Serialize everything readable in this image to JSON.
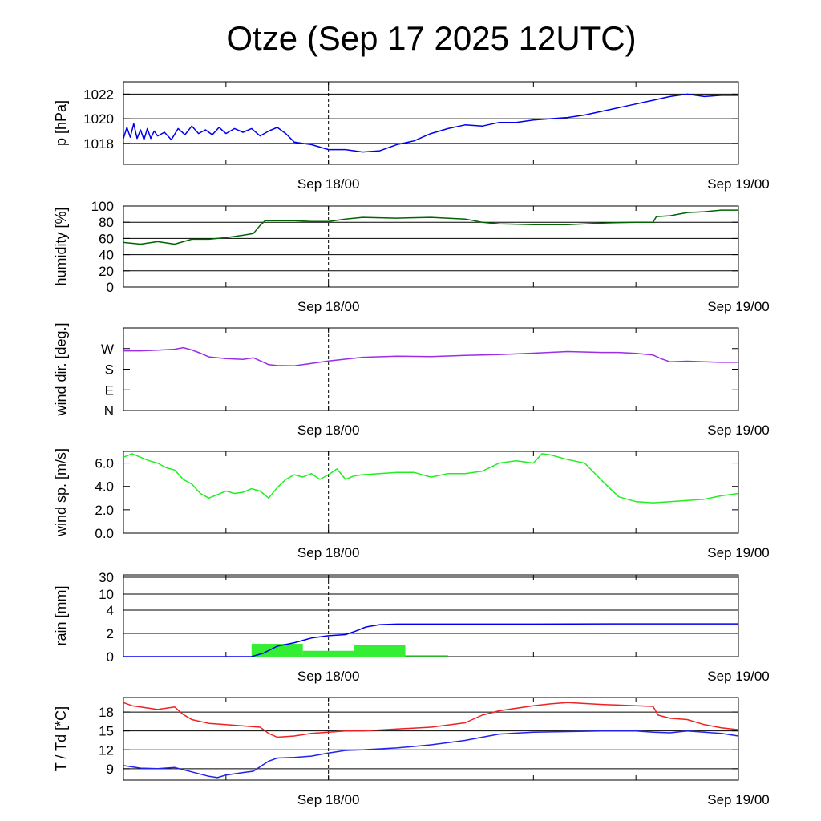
{
  "title": "Otze (Sep 17 2025 12UTC)",
  "chart_data": [
    {
      "id": "pressure",
      "type": "line",
      "ylabel": "p [hPa]",
      "ylim": [
        1016.3,
        1023
      ],
      "yticks": [
        1018,
        1020,
        1022
      ],
      "ytick_labels": [
        "1018",
        "1020",
        "1022"
      ],
      "grid": true,
      "color": "#0000ee",
      "x_range_hours": [
        0,
        36
      ],
      "xtick_hours": [
        12,
        36
      ],
      "xtick_labels": [
        "Sep 18/00",
        "Sep 19/00"
      ],
      "series": [
        {
          "name": "pressure",
          "x": [
            0,
            0.2,
            0.4,
            0.6,
            0.8,
            1.0,
            1.2,
            1.4,
            1.6,
            1.8,
            2.0,
            2.4,
            2.8,
            3.2,
            3.6,
            4.0,
            4.4,
            4.8,
            5.2,
            5.6,
            6,
            6.5,
            7,
            7.5,
            8,
            8.5,
            9,
            9.5,
            10,
            11,
            12,
            13,
            14,
            15,
            16,
            17,
            18,
            19,
            20,
            21,
            22,
            23,
            24,
            25,
            26,
            27,
            28,
            29,
            30,
            31,
            32,
            33,
            34,
            35,
            36
          ],
          "values": [
            1018.4,
            1019.3,
            1018.5,
            1019.6,
            1018.4,
            1019.1,
            1018.3,
            1019.2,
            1018.4,
            1019.0,
            1018.6,
            1018.9,
            1018.3,
            1019.2,
            1018.7,
            1019.4,
            1018.8,
            1019.1,
            1018.7,
            1019.3,
            1018.8,
            1019.2,
            1018.9,
            1019.2,
            1018.6,
            1019.0,
            1019.3,
            1018.8,
            1018.1,
            1017.9,
            1017.5,
            1017.5,
            1017.3,
            1017.4,
            1017.9,
            1018.2,
            1018.8,
            1019.2,
            1019.5,
            1019.4,
            1019.7,
            1019.7,
            1019.9,
            1020.0,
            1020.1,
            1020.3,
            1020.6,
            1020.9,
            1021.2,
            1021.5,
            1021.8,
            1022.0,
            1021.8,
            1021.9,
            1021.9
          ]
        }
      ]
    },
    {
      "id": "humidity",
      "type": "line",
      "ylabel": "humidity [%]",
      "ylim": [
        0,
        100
      ],
      "yticks": [
        0,
        20,
        40,
        60,
        80,
        100
      ],
      "ytick_labels": [
        "0",
        "20",
        "40",
        "60",
        "80",
        "100"
      ],
      "grid": true,
      "color": "#006400",
      "x_range_hours": [
        0,
        36
      ],
      "xtick_hours": [
        12,
        36
      ],
      "xtick_labels": [
        "Sep 18/00",
        "Sep 19/00"
      ],
      "series": [
        {
          "name": "humidity",
          "x": [
            0,
            1,
            2,
            3,
            4,
            5,
            6,
            7,
            7.6,
            8.0,
            8.3,
            9,
            10,
            11,
            12,
            13,
            14,
            16,
            18,
            20,
            21,
            22,
            24,
            26,
            28,
            30,
            31,
            31.2,
            32,
            33,
            34,
            35,
            36
          ],
          "values": [
            55,
            53,
            56,
            53,
            59,
            59,
            61,
            64,
            66,
            76,
            82,
            82,
            82,
            81,
            81,
            84,
            86,
            85,
            86,
            84,
            80,
            78,
            77,
            77,
            79,
            80,
            80,
            87,
            88,
            92,
            93,
            95,
            95
          ]
        }
      ]
    },
    {
      "id": "wind_direction",
      "type": "line",
      "ylabel": "wind dir. [deg.]",
      "ylim": [
        0,
        360
      ],
      "yticks": [
        0,
        90,
        180,
        270
      ],
      "ytick_labels": [
        "N",
        "E",
        "S",
        "W"
      ],
      "grid": false,
      "color": "#9a2ee8",
      "x_range_hours": [
        0,
        36
      ],
      "xtick_hours": [
        12,
        36
      ],
      "xtick_labels": [
        "Sep 18/00",
        "Sep 19/00"
      ],
      "series": [
        {
          "name": "wind direction",
          "x": [
            0,
            1,
            2,
            3,
            3.5,
            4,
            4.5,
            5,
            6,
            7,
            7.6,
            8,
            8.5,
            9,
            10,
            11,
            12,
            14,
            16,
            18,
            20,
            22,
            24,
            26,
            28,
            29,
            30,
            31,
            31.5,
            32,
            33,
            34,
            35,
            36
          ],
          "values": [
            260,
            260,
            263,
            267,
            274,
            264,
            250,
            234,
            226,
            223,
            230,
            217,
            200,
            196,
            195,
            205,
            216,
            232,
            237,
            235,
            240,
            244,
            250,
            257,
            253,
            253,
            249,
            242,
            225,
            212,
            215,
            212,
            210,
            210
          ]
        }
      ]
    },
    {
      "id": "wind_speed",
      "type": "line",
      "ylabel": "wind sp. [m/s]",
      "ylim": [
        0,
        7
      ],
      "yticks": [
        0,
        2,
        4,
        6
      ],
      "ytick_labels": [
        "0.0",
        "2.0",
        "4.0",
        "6.0"
      ],
      "grid": false,
      "color": "#22ee22",
      "x_range_hours": [
        0,
        36
      ],
      "xtick_hours": [
        12,
        36
      ],
      "xtick_labels": [
        "Sep 18/00",
        "Sep 19/00"
      ],
      "series": [
        {
          "name": "wind speed",
          "x": [
            0,
            0.5,
            1,
            1.5,
            2,
            2.5,
            3,
            3.5,
            4,
            4.5,
            5,
            5.5,
            6,
            6.5,
            7,
            7.5,
            8,
            8.5,
            9,
            9.5,
            10,
            10.5,
            11,
            11.5,
            12,
            12.5,
            13,
            13.5,
            14,
            15,
            16,
            17,
            18,
            19,
            20,
            21,
            22,
            23,
            24,
            24.5,
            25,
            26,
            27,
            28,
            29,
            30,
            31,
            32,
            33,
            34,
            35,
            36
          ],
          "values": [
            6.5,
            6.8,
            6.5,
            6.2,
            6.0,
            5.6,
            5.4,
            4.6,
            4.2,
            3.4,
            3.0,
            3.3,
            3.6,
            3.4,
            3.5,
            3.8,
            3.6,
            3.0,
            3.9,
            4.6,
            5.0,
            4.8,
            5.1,
            4.6,
            5.0,
            5.5,
            4.6,
            4.9,
            5.0,
            5.1,
            5.2,
            5.2,
            4.8,
            5.1,
            5.1,
            5.3,
            6.0,
            6.2,
            6.0,
            6.8,
            6.7,
            6.3,
            6.0,
            4.5,
            3.1,
            2.7,
            2.6,
            2.7,
            2.8,
            2.9,
            3.2,
            3.4
          ]
        }
      ]
    },
    {
      "id": "rain",
      "type": "bar+line",
      "ylabel": "rain [mm]",
      "yticks": [
        0,
        2,
        4,
        10,
        30
      ],
      "ytick_labels": [
        "0",
        "2",
        "4",
        "10",
        "30"
      ],
      "grid": true,
      "x_range_hours": [
        0,
        36
      ],
      "xtick_hours": [
        12,
        36
      ],
      "xtick_labels": [
        "Sep 18/00",
        "Sep 19/00"
      ],
      "bars": {
        "name": "hourly rain",
        "color": "#33ee33",
        "start_hours": [
          7.5,
          10.5,
          13.5
        ],
        "end_hours": [
          10.5,
          13.5,
          16.5
        ],
        "values": [
          1.1,
          0.5,
          1.0
        ]
      },
      "series": [
        {
          "name": "accumulated rain",
          "color": "#0000ee",
          "x": [
            0,
            7.5,
            8.2,
            9.0,
            10.0,
            11.0,
            12.0,
            13.0,
            13.6,
            14.2,
            15.0,
            16.0,
            20.0,
            24.0,
            30.0,
            36.0
          ],
          "values": [
            0,
            0,
            0.3,
            0.9,
            1.2,
            1.6,
            1.8,
            1.9,
            2.2,
            2.55,
            2.75,
            2.8,
            2.8,
            2.8,
            2.82,
            2.82
          ]
        }
      ]
    },
    {
      "id": "temperature_dewpoint",
      "type": "line",
      "ylabel": "T / Td [*C]",
      "ylim": [
        7.2,
        20.3
      ],
      "yticks": [
        9,
        12,
        15,
        18
      ],
      "ytick_labels": [
        "9",
        "12",
        "15",
        "18"
      ],
      "grid": true,
      "x_range_hours": [
        0,
        36
      ],
      "xtick_hours": [
        12,
        36
      ],
      "xtick_labels": [
        "Sep 18/00",
        "Sep 19/00"
      ],
      "series": [
        {
          "name": "temperature",
          "color": "#ee2222",
          "x": [
            0,
            0.5,
            1,
            2,
            3,
            3.5,
            4,
            5,
            6,
            7,
            8,
            8.5,
            9,
            10,
            11,
            12,
            13,
            14,
            16,
            18,
            20,
            21,
            22,
            24,
            25,
            26,
            28,
            30,
            31,
            31.3,
            32,
            33,
            34,
            35,
            36
          ],
          "values": [
            19.5,
            19.0,
            18.8,
            18.4,
            18.8,
            17.6,
            16.8,
            16.2,
            16.0,
            15.8,
            15.6,
            14.6,
            14.0,
            14.2,
            14.6,
            14.8,
            15.0,
            15.0,
            15.3,
            15.6,
            16.3,
            17.5,
            18.2,
            19.0,
            19.3,
            19.5,
            19.2,
            19.0,
            18.9,
            17.5,
            17.0,
            16.8,
            16.0,
            15.5,
            15.2
          ]
        },
        {
          "name": "dew point",
          "color": "#2222ee",
          "x": [
            0,
            1,
            2,
            3,
            4,
            5,
            5.5,
            6,
            7,
            7.6,
            8.5,
            9,
            10,
            11,
            12,
            13,
            14,
            16,
            18,
            20,
            21,
            22,
            24,
            26,
            28,
            30,
            31,
            32,
            33,
            34,
            35,
            36
          ],
          "values": [
            9.5,
            9.1,
            9.0,
            9.2,
            8.5,
            7.8,
            7.6,
            8.0,
            8.4,
            8.6,
            10.2,
            10.7,
            10.8,
            11.0,
            11.5,
            11.9,
            12.0,
            12.3,
            12.8,
            13.5,
            14.0,
            14.5,
            14.8,
            14.9,
            15.0,
            15.0,
            14.8,
            14.7,
            15.0,
            14.8,
            14.6,
            14.2
          ]
        }
      ]
    }
  ]
}
